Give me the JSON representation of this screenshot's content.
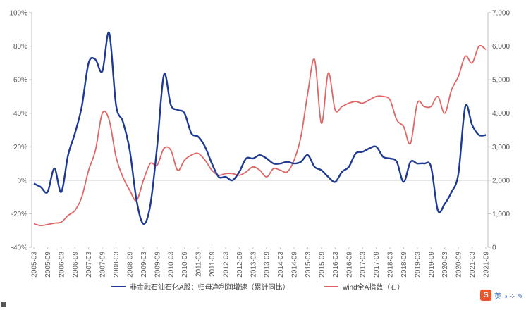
{
  "chart_data": {
    "type": "line",
    "title": "",
    "x": [
      "2005-03",
      "2005-06",
      "2005-09",
      "2005-12",
      "2006-03",
      "2006-06",
      "2006-09",
      "2006-12",
      "2007-03",
      "2007-06",
      "2007-09",
      "2007-12",
      "2008-03",
      "2008-06",
      "2008-09",
      "2008-12",
      "2009-03",
      "2009-06",
      "2009-09",
      "2009-12",
      "2010-03",
      "2010-06",
      "2010-09",
      "2010-12",
      "2011-03",
      "2011-06",
      "2011-09",
      "2011-12",
      "2012-03",
      "2012-06",
      "2012-09",
      "2012-12",
      "2013-03",
      "2013-06",
      "2013-09",
      "2013-12",
      "2014-03",
      "2014-06",
      "2014-09",
      "2014-12",
      "2015-03",
      "2015-06",
      "2015-09",
      "2015-12",
      "2016-03",
      "2016-06",
      "2016-09",
      "2016-12",
      "2017-03",
      "2017-06",
      "2017-09",
      "2017-12",
      "2018-03",
      "2018-06",
      "2018-09",
      "2018-12",
      "2019-03",
      "2019-06",
      "2019-09",
      "2019-12",
      "2020-03",
      "2020-06",
      "2020-09",
      "2020-12",
      "2021-03",
      "2021-06",
      "2021-09"
    ],
    "x_tick_labels": [
      "2005-03",
      "2005-09",
      "2006-03",
      "2006-09",
      "2007-03",
      "2007-09",
      "2008-03",
      "2008-09",
      "2009-03",
      "2009-09",
      "2010-03",
      "2010-09",
      "2011-03",
      "2011-09",
      "2012-03",
      "2012-09",
      "2013-03",
      "2013-09",
      "2014-03",
      "2014-09",
      "2015-03",
      "2015-09",
      "2016-03",
      "2016-09",
      "2017-03",
      "2017-09",
      "2018-03",
      "2018-09",
      "2019-03",
      "2019-09",
      "2020-03",
      "2020-09",
      "2021-03",
      "2021-09"
    ],
    "y_left": {
      "label": "",
      "ticks": [
        "100%",
        "80%",
        "60%",
        "40%",
        "20%",
        "0%",
        "-20%",
        "-40%"
      ],
      "range": [
        -40,
        100
      ]
    },
    "y_right": {
      "label": "",
      "ticks": [
        "7,000",
        "6,000",
        "5,000",
        "4,000",
        "3,000",
        "2,000",
        "1,000",
        "0"
      ],
      "range": [
        0,
        7000
      ]
    },
    "grid": false,
    "legend_position": "bottom",
    "series": [
      {
        "name": "非金融石油石化A股：归母净利润增速（累计同比）",
        "axis": "left",
        "color": "#1f3a93",
        "values": [
          -2,
          -4,
          -7,
          7,
          -7,
          15,
          28,
          44,
          70,
          72,
          65,
          88,
          45,
          35,
          18,
          -12,
          -26,
          -15,
          20,
          63,
          45,
          42,
          40,
          28,
          26,
          20,
          10,
          2,
          2,
          0,
          5,
          13,
          13,
          15,
          13,
          10,
          10,
          11,
          10,
          11,
          15,
          8,
          6,
          2,
          -1,
          5,
          8,
          16,
          17,
          19,
          20,
          14,
          13,
          11,
          -1,
          11,
          10,
          10,
          8,
          -18,
          -14,
          -7,
          4,
          44,
          33,
          27,
          27
        ]
      },
      {
        "name": "wind全A指数（右）",
        "axis": "right",
        "color": "#e06666",
        "values": [
          700,
          650,
          680,
          720,
          750,
          950,
          1100,
          1500,
          2300,
          2900,
          4000,
          3800,
          2700,
          2100,
          1700,
          1400,
          2000,
          2500,
          2450,
          2950,
          2900,
          2300,
          2600,
          2750,
          2800,
          2600,
          2300,
          2150,
          2200,
          2200,
          2150,
          2250,
          2400,
          2300,
          2100,
          2350,
          2300,
          2250,
          2600,
          3300,
          4600,
          5600,
          3700,
          5200,
          4100,
          4200,
          4300,
          4350,
          4300,
          4400,
          4500,
          4500,
          4400,
          3800,
          3600,
          3100,
          4300,
          4200,
          4200,
          4500,
          4000,
          4700,
          5100,
          5700,
          5500,
          6000,
          5900
        ]
      }
    ]
  },
  "watermark": {
    "logo_letter": "S",
    "text": "英 ◑ ⁘ ✎"
  }
}
